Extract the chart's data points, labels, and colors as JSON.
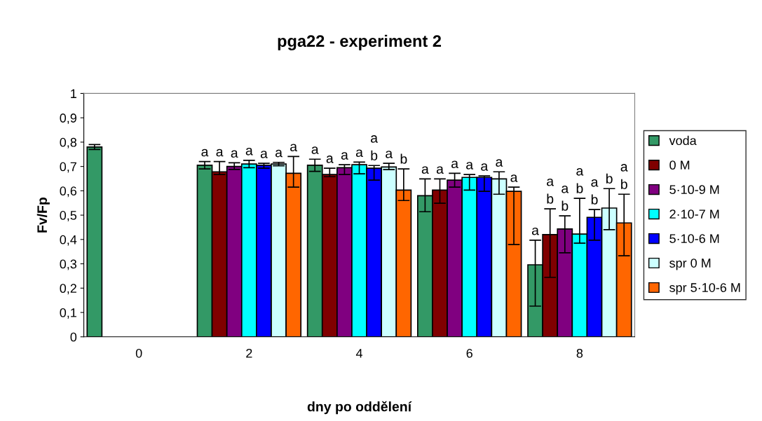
{
  "chart_data": {
    "type": "bar",
    "title": "pga22 - experiment 2",
    "xlabel": "dny po oddělení",
    "ylabel": "Fv/Fp",
    "categories": [
      "0",
      "2",
      "4",
      "6",
      "8"
    ],
    "series": [
      {
        "name": "voda",
        "color": "#339966",
        "values": [
          0.78,
          0.705,
          0.705,
          0.58,
          0.296
        ],
        "errors": [
          [
            0.77,
            0.79
          ],
          [
            0.69,
            0.72
          ],
          [
            0.68,
            0.73
          ],
          [
            0.514,
            0.649
          ],
          [
            0.126,
            0.397
          ]
        ],
        "value_labels": [
          null,
          "a",
          "a",
          "a",
          "a"
        ]
      },
      {
        "name": "0 M",
        "color": "#800000",
        "values": [
          null,
          0.678,
          0.667,
          0.603,
          0.42
        ],
        "errors": [
          null,
          [
            0.667,
            0.72
          ],
          [
            0.658,
            0.693
          ],
          [
            0.549,
            0.649
          ],
          [
            0.244,
            0.526
          ]
        ],
        "value_labels": [
          null,
          "a",
          "a",
          "a",
          "a\nb"
        ]
      },
      {
        "name": "5·10-9 M",
        "color": "#800080",
        "values": [
          null,
          0.7,
          0.695,
          0.644,
          0.443
        ],
        "errors": [
          null,
          [
            0.688,
            0.715
          ],
          [
            0.667,
            0.707
          ],
          [
            0.615,
            0.672
          ],
          [
            0.345,
            0.497
          ]
        ],
        "value_labels": [
          null,
          "a",
          "a",
          "a",
          "a\nb"
        ]
      },
      {
        "name": "2·10-7 M",
        "color": "#00ffff",
        "values": [
          null,
          0.71,
          0.707,
          0.655,
          0.422
        ],
        "errors": [
          null,
          [
            0.695,
            0.725
          ],
          [
            0.67,
            0.718
          ],
          [
            0.603,
            0.667
          ],
          [
            0.385,
            0.569
          ]
        ],
        "value_labels": [
          null,
          "a",
          "a",
          "a",
          "a\nb"
        ]
      },
      {
        "name": "5·10-6 M",
        "color": "#0000ff",
        "values": [
          null,
          0.705,
          0.693,
          0.655,
          0.491
        ],
        "errors": [
          null,
          [
            0.693,
            0.713
          ],
          [
            0.644,
            0.704
          ],
          [
            0.598,
            0.661
          ],
          [
            0.397,
            0.523
          ]
        ],
        "value_labels": [
          null,
          "a",
          "a\nb",
          "a",
          "a\nb"
        ]
      },
      {
        "name": "spr 0 M",
        "color": "#ccffff",
        "values": [
          null,
          0.71,
          0.698,
          0.649,
          0.529
        ],
        "errors": [
          null,
          [
            0.703,
            0.717
          ],
          [
            0.687,
            0.713
          ],
          [
            0.586,
            0.678
          ],
          [
            0.44,
            0.609
          ]
        ],
        "value_labels": [
          null,
          "a",
          "a",
          "a",
          "b"
        ]
      },
      {
        "name": "spr 5·10-6 M",
        "color": "#ff6600",
        "values": [
          null,
          0.672,
          0.603,
          0.598,
          0.468
        ],
        "errors": [
          null,
          [
            0.615,
            0.741
          ],
          [
            0.56,
            0.69
          ],
          [
            0.379,
            0.615
          ],
          [
            0.333,
            0.586
          ]
        ],
        "value_labels": [
          null,
          "a",
          "b",
          "a",
          "a\nb"
        ]
      }
    ],
    "ylim": [
      0,
      1
    ],
    "yticks": [
      0,
      {
        "value": 0.1,
        "label": "0,1"
      },
      {
        "value": 0.2,
        "label": "0,2"
      },
      {
        "value": 0.3,
        "label": "0,3"
      },
      {
        "value": 0.4,
        "label": "0,4"
      },
      {
        "value": 0.5,
        "label": "0,5"
      },
      {
        "value": 0.6,
        "label": "0,6"
      },
      {
        "value": 0.7,
        "label": "0,7"
      },
      {
        "value": 0.8,
        "label": "0,8"
      },
      {
        "value": 0.9,
        "label": "0,9"
      },
      1
    ],
    "grid": false,
    "legend": "right"
  }
}
